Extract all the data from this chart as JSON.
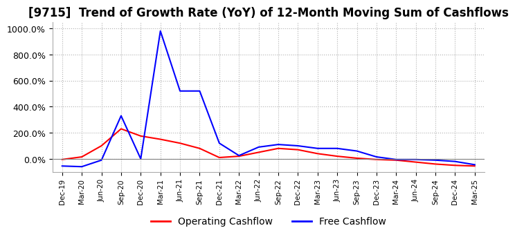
{
  "title": "[9715]  Trend of Growth Rate (YoY) of 12-Month Moving Sum of Cashflows",
  "title_fontsize": 12,
  "ylim": [
    -100,
    1050
  ],
  "yticks": [
    0,
    200,
    400,
    600,
    800,
    1000
  ],
  "ytick_labels": [
    "0.0%",
    "200.0%",
    "400.0%",
    "600.0%",
    "800.0%",
    "1000.0%"
  ],
  "background_color": "#ffffff",
  "grid_color": "#b0b0b0",
  "operating_color": "#ff0000",
  "free_color": "#0000ff",
  "legend_labels": [
    "Operating Cashflow",
    "Free Cashflow"
  ],
  "x_labels": [
    "Dec-19",
    "Mar-20",
    "Jun-20",
    "Sep-20",
    "Dec-20",
    "Mar-21",
    "Jun-21",
    "Sep-21",
    "Dec-21",
    "Mar-22",
    "Jun-22",
    "Sep-22",
    "Dec-22",
    "Mar-23",
    "Jun-23",
    "Sep-23",
    "Dec-23",
    "Mar-24",
    "Jun-24",
    "Sep-24",
    "Dec-24",
    "Mar-25"
  ],
  "operating_cashflow": [
    -5,
    15,
    100,
    230,
    175,
    150,
    120,
    80,
    10,
    20,
    50,
    80,
    70,
    40,
    20,
    5,
    -5,
    -10,
    -25,
    -40,
    -50,
    -55
  ],
  "free_cashflow": [
    -55,
    -60,
    -10,
    330,
    0,
    980,
    520,
    520,
    120,
    25,
    90,
    110,
    100,
    80,
    80,
    60,
    15,
    -5,
    -5,
    -10,
    -20,
    -45
  ]
}
